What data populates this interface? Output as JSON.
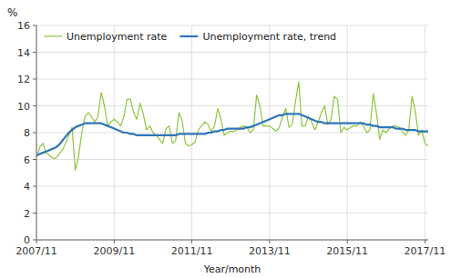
{
  "chart_data": {
    "type": "line",
    "ylabel": "%",
    "xlabel": "Year/month",
    "categories": [
      "2007/11",
      null,
      null,
      null,
      null,
      null,
      null,
      null,
      null,
      null,
      null,
      null,
      null,
      null,
      null,
      null,
      null,
      null,
      null,
      null,
      null,
      null,
      null,
      null,
      "2009/11",
      null,
      null,
      null,
      null,
      null,
      null,
      null,
      null,
      null,
      null,
      null,
      null,
      null,
      null,
      null,
      null,
      null,
      null,
      null,
      null,
      null,
      null,
      null,
      "2011/11",
      null,
      null,
      null,
      null,
      null,
      null,
      null,
      null,
      null,
      null,
      null,
      null,
      null,
      null,
      null,
      null,
      null,
      null,
      null,
      null,
      null,
      null,
      null,
      "2013/11",
      null,
      null,
      null,
      null,
      null,
      null,
      null,
      null,
      null,
      null,
      null,
      null,
      null,
      null,
      null,
      null,
      null,
      null,
      null,
      null,
      null,
      null,
      null,
      "2015/11",
      null,
      null,
      null,
      null,
      null,
      null,
      null,
      null,
      null,
      null,
      null,
      null,
      null,
      null,
      null,
      null,
      null,
      null,
      null,
      null,
      null,
      null,
      null,
      "2017/11",
      null
    ],
    "series": [
      {
        "name": "Unemployment rate",
        "color": "#8dc63f",
        "values": [
          6.1,
          6.9,
          7.2,
          6.5,
          6.3,
          6.1,
          6.1,
          6.4,
          6.7,
          7.2,
          7.8,
          8.4,
          5.2,
          6.2,
          8.0,
          9.2,
          9.5,
          9.2,
          8.8,
          9.2,
          11.0,
          10.0,
          8.5,
          8.8,
          9.0,
          8.8,
          8.5,
          9.2,
          10.5,
          10.5,
          9.5,
          9.0,
          10.2,
          9.4,
          8.2,
          8.5,
          8.0,
          7.8,
          7.5,
          7.2,
          8.3,
          8.5,
          7.2,
          7.4,
          9.5,
          8.9,
          7.2,
          7.0,
          7.1,
          7.3,
          8.2,
          8.5,
          8.8,
          8.6,
          8.1,
          8.5,
          9.8,
          9.0,
          7.8,
          8.0,
          8.1,
          8.1,
          8.2,
          8.4,
          8.5,
          8.4,
          8.0,
          8.2,
          10.8,
          10.0,
          8.5,
          8.5,
          8.5,
          8.3,
          8.1,
          8.4,
          9.2,
          9.8,
          8.4,
          8.6,
          10.3,
          11.8,
          8.5,
          8.5,
          9.2,
          8.8,
          8.2,
          8.8,
          9.5,
          10.0,
          8.6,
          9.0,
          10.7,
          10.5,
          8.0,
          8.4,
          8.2,
          8.4,
          8.5,
          8.5,
          8.8,
          8.5,
          8.0,
          8.2,
          10.9,
          9.5,
          7.5,
          8.2,
          8.0,
          8.3,
          8.5,
          8.5,
          8.4,
          8.1,
          7.8,
          8.2,
          10.7,
          9.6,
          7.8,
          8.2,
          7.2,
          7.0
        ]
      },
      {
        "name": "Unemployment rate, trend",
        "color": "#2e75b6",
        "values": [
          6.3,
          6.4,
          6.5,
          6.6,
          6.7,
          6.8,
          6.9,
          7.1,
          7.4,
          7.7,
          8.0,
          8.2,
          8.4,
          8.5,
          8.6,
          8.7,
          8.7,
          8.7,
          8.7,
          8.7,
          8.7,
          8.6,
          8.5,
          8.4,
          8.3,
          8.2,
          8.1,
          8.0,
          8.0,
          7.9,
          7.9,
          7.8,
          7.8,
          7.8,
          7.8,
          7.8,
          7.8,
          7.8,
          7.8,
          7.8,
          7.8,
          7.8,
          7.8,
          7.8,
          7.9,
          7.9,
          7.9,
          7.9,
          7.9,
          7.9,
          7.9,
          7.9,
          7.9,
          8.0,
          8.0,
          8.1,
          8.1,
          8.2,
          8.2,
          8.3,
          8.3,
          8.3,
          8.3,
          8.3,
          8.3,
          8.4,
          8.4,
          8.5,
          8.6,
          8.7,
          8.8,
          8.9,
          9.0,
          9.1,
          9.2,
          9.3,
          9.3,
          9.4,
          9.4,
          9.4,
          9.4,
          9.4,
          9.3,
          9.2,
          9.1,
          9.0,
          8.9,
          8.8,
          8.8,
          8.7,
          8.7,
          8.7,
          8.7,
          8.7,
          8.7,
          8.7,
          8.7,
          8.7,
          8.7,
          8.7,
          8.7,
          8.7,
          8.6,
          8.6,
          8.5,
          8.5,
          8.4,
          8.4,
          8.4,
          8.4,
          8.4,
          8.3,
          8.3,
          8.3,
          8.2,
          8.2,
          8.2,
          8.2,
          8.1,
          8.1,
          8.1,
          8.1
        ]
      }
    ],
    "ylim": [
      0,
      16
    ],
    "yticks": [
      0,
      2,
      4,
      6,
      8,
      10,
      12,
      14,
      16
    ],
    "grid": true,
    "legend": "upper left"
  }
}
